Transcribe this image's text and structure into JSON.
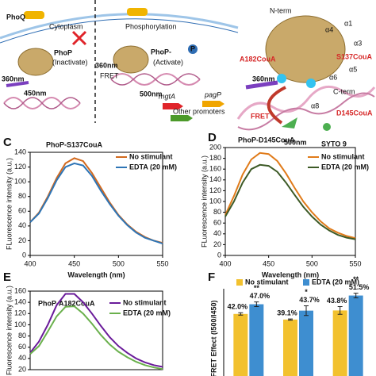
{
  "diagram": {
    "texts": [
      "PhoQ",
      "Cytoplasm",
      "PhoP",
      "(Inactivate)",
      "360nm",
      "450nm",
      "Phosphorylation",
      "PhoP-",
      "P",
      "(Activate)",
      "360nm",
      "FRET",
      "500nm",
      "mgtA",
      "pagP",
      "Other promoters",
      "N-term",
      "α1",
      "α4",
      "α3",
      "A182CouA",
      "S137CouA",
      "α5",
      "α6",
      "360nm",
      "C-term",
      "D145CouA",
      "α8",
      "FRET",
      "500nm",
      "SYTO 9"
    ]
  },
  "chart_data": [
    {
      "type": "line",
      "panel": "C",
      "title": "PhoP-S137CouA",
      "xlabel": "Wavelength (nm)",
      "ylabel": "FLuorescence intensity (a.u.)",
      "x": [
        400,
        410,
        420,
        430,
        440,
        450,
        460,
        470,
        480,
        490,
        500,
        510,
        520,
        530,
        540,
        550
      ],
      "series": [
        {
          "name": "No stimulant",
          "color": "#d2691e",
          "values": [
            45,
            58,
            80,
            105,
            125,
            132,
            128,
            112,
            92,
            72,
            55,
            42,
            32,
            25,
            20,
            17
          ]
        },
        {
          "name": "EDTA (20 mM)",
          "color": "#2e75b6",
          "values": [
            45,
            57,
            78,
            102,
            120,
            125,
            122,
            108,
            88,
            70,
            54,
            41,
            31,
            24,
            20,
            16
          ]
        }
      ],
      "xlim": [
        400,
        550
      ],
      "xticks": [
        400,
        450,
        500,
        550
      ],
      "ylim": [
        0,
        140
      ],
      "yticks": [
        0,
        20,
        40,
        60,
        80,
        100,
        120,
        140
      ]
    },
    {
      "type": "line",
      "panel": "D",
      "title": "PhoP-D145CouA",
      "xlabel": "Wavelength (nm)",
      "ylabel": "FLuorescence intensity (a.u.)",
      "x": [
        400,
        410,
        420,
        430,
        440,
        450,
        460,
        470,
        480,
        490,
        500,
        510,
        520,
        530,
        540,
        550
      ],
      "series": [
        {
          "name": "No stimulant",
          "color": "#e07b1a",
          "values": [
            75,
            110,
            150,
            178,
            190,
            188,
            175,
            152,
            125,
            100,
            80,
            63,
            50,
            42,
            36,
            32
          ]
        },
        {
          "name": "EDTA (20 mM)",
          "color": "#3d5a26",
          "values": [
            72,
            100,
            135,
            160,
            168,
            166,
            155,
            135,
            112,
            90,
            72,
            57,
            46,
            38,
            33,
            30
          ]
        }
      ],
      "xlim": [
        400,
        550
      ],
      "xticks": [
        400,
        450,
        500,
        550
      ],
      "ylim": [
        0,
        200
      ],
      "yticks": [
        0,
        20,
        40,
        60,
        80,
        100,
        120,
        140,
        160,
        180,
        200
      ]
    },
    {
      "type": "line",
      "panel": "E",
      "title": "PhoP-A182CouA",
      "ylabel": "Fluorescence intensity (a.u.)",
      "x": [
        400,
        410,
        420,
        430,
        440,
        450,
        460,
        470,
        480,
        490,
        500,
        510,
        520,
        530,
        540,
        550
      ],
      "series": [
        {
          "name": "No stimulant",
          "color": "#6a1b9a",
          "values": [
            50,
            70,
            100,
            135,
            155,
            155,
            140,
            120,
            98,
            78,
            62,
            50,
            40,
            33,
            28,
            25
          ]
        },
        {
          "name": "EDTA (20 mM)",
          "color": "#6ab04c",
          "values": [
            48,
            62,
            88,
            115,
            132,
            133,
            120,
            102,
            82,
            65,
            52,
            42,
            34,
            28,
            24,
            21
          ]
        }
      ],
      "xlim": [
        400,
        550
      ],
      "ylim": [
        20,
        160
      ],
      "yticks": [
        20,
        40,
        60,
        80,
        100,
        120,
        140,
        160
      ]
    },
    {
      "type": "bar",
      "panel": "F",
      "ylabel": "FRET Effect (I500/I450)",
      "categories": [
        null,
        null,
        null
      ],
      "series": [
        {
          "name": "No stimulant",
          "color": "#f2c12e",
          "values": [
            42.0,
            39.1,
            43.8
          ],
          "value_labels": [
            "42.0%",
            "39.1%",
            "43.8%"
          ],
          "errors": [
            0.6,
            0.3,
            2.0
          ]
        },
        {
          "name": "EDTA (20 mM)",
          "color": "#3e8ed0",
          "values": [
            47.0,
            43.7,
            51.5
          ],
          "value_labels": [
            "47.0%",
            "43.7%",
            "51.5%"
          ],
          "errors": [
            1.2,
            2.5,
            1.2
          ],
          "annotations": [
            "**",
            "*",
            "**"
          ]
        }
      ],
      "ylim": [
        10,
        55
      ]
    }
  ]
}
